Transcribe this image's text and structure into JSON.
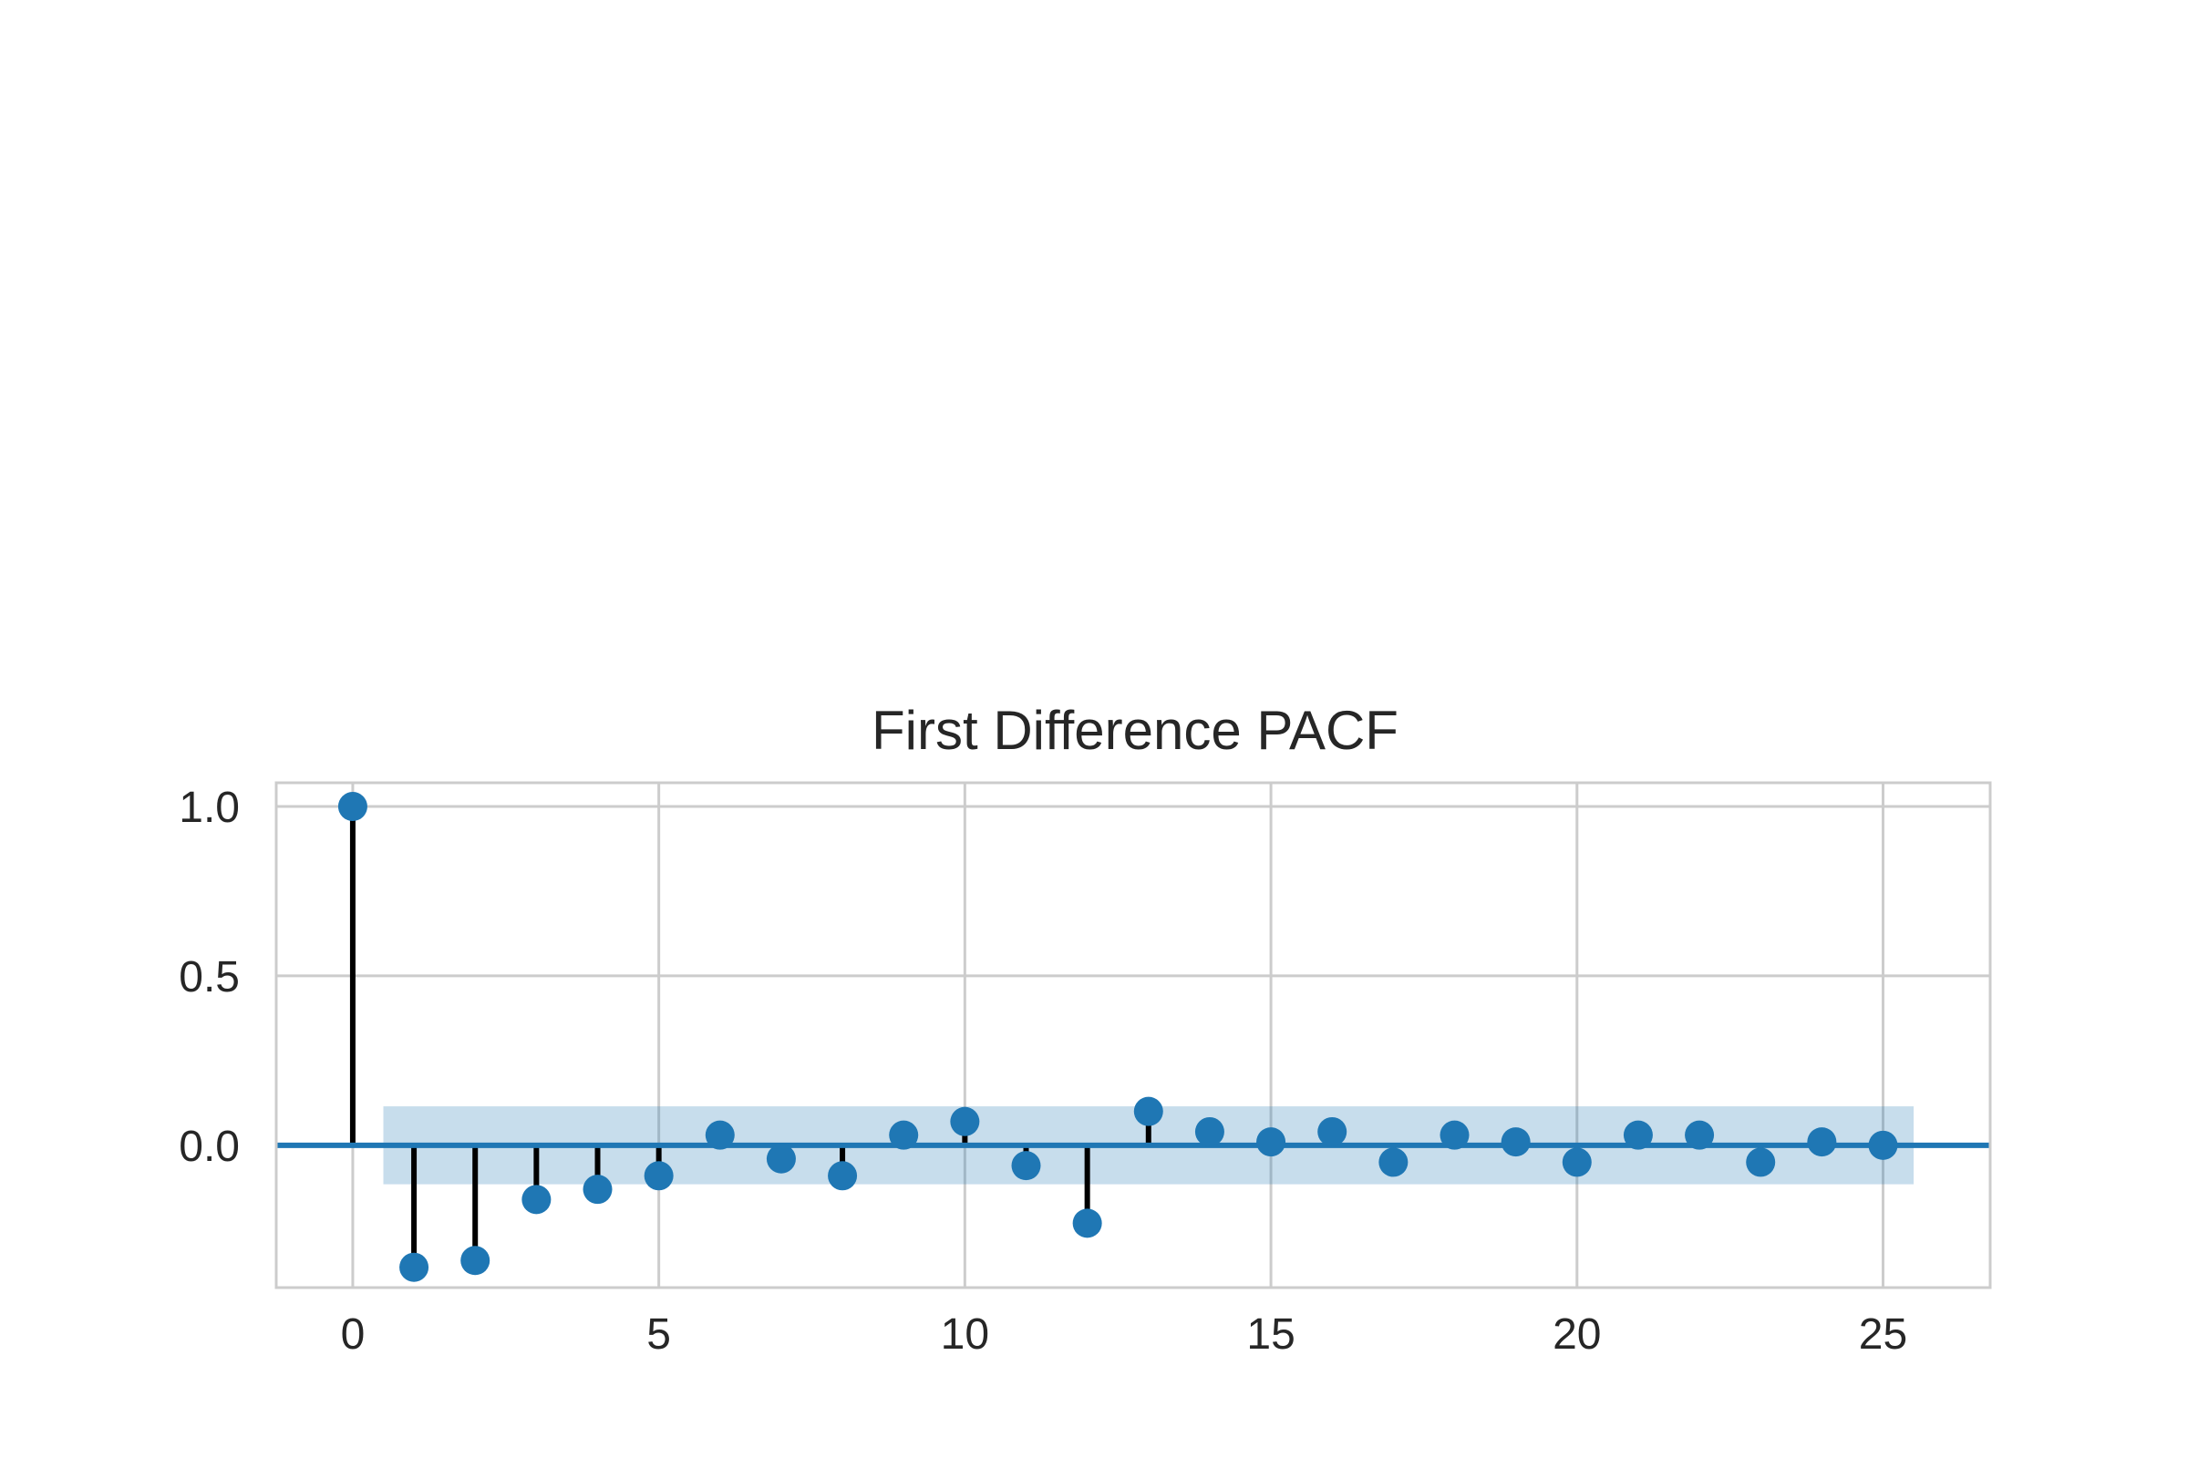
{
  "chart_data": {
    "type": "scatter",
    "subtype": "stem",
    "title": "First Difference PACF",
    "xlabel": "",
    "ylabel": "",
    "xlim": [
      -1.25,
      26.75
    ],
    "ylim": [
      -0.42,
      1.07
    ],
    "xticks": [
      0,
      5,
      10,
      15,
      20,
      25
    ],
    "xtick_labels": [
      "0",
      "5",
      "10",
      "15",
      "20",
      "25"
    ],
    "yticks": [
      0.0,
      0.5,
      1.0
    ],
    "ytick_labels": [
      "0.0",
      "0.5",
      "1.0"
    ],
    "grid": true,
    "series": [
      {
        "lags": [
          0,
          1,
          2,
          3,
          4,
          5,
          6,
          7,
          8,
          9,
          10,
          11,
          12,
          13,
          14,
          15,
          16,
          17,
          18,
          19,
          20,
          21,
          22,
          23,
          24,
          25
        ],
        "values": [
          1.0,
          -0.36,
          -0.34,
          -0.16,
          -0.13,
          -0.09,
          0.03,
          -0.04,
          -0.09,
          0.03,
          0.07,
          -0.06,
          -0.23,
          0.1,
          0.04,
          0.01,
          0.04,
          -0.05,
          0.03,
          0.01,
          -0.05,
          0.03,
          0.03,
          -0.05,
          0.01,
          0.0
        ]
      }
    ],
    "confidence_band": {
      "x_range": [
        0.5,
        25.5
      ],
      "lower": -0.115,
      "upper": 0.115
    },
    "colors": {
      "marker": "#1f77b4",
      "stem": "#000000",
      "baseline": "#1f77b4",
      "band": "#1f77b4",
      "grid": "#cccccc",
      "spine": "#cccccc",
      "text": "#262626"
    }
  }
}
